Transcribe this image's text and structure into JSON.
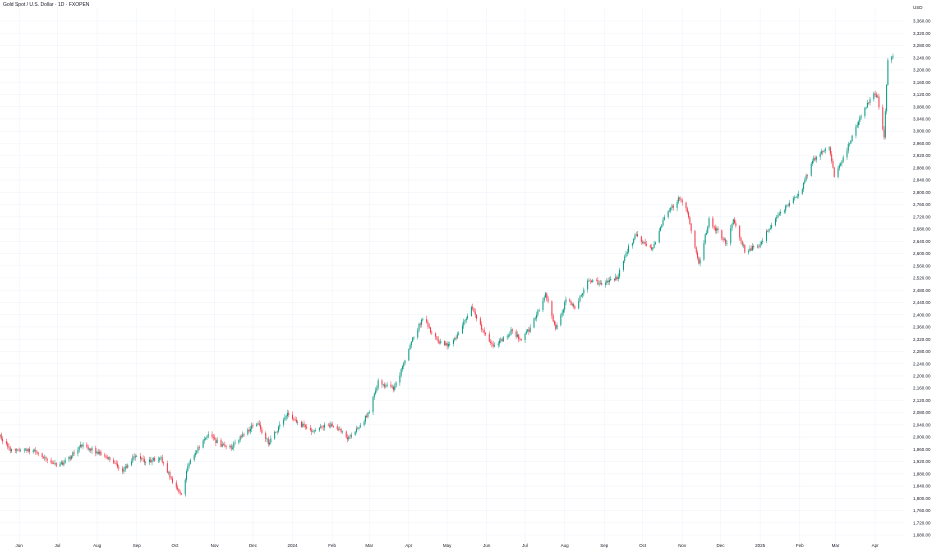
{
  "header": {
    "symbol_title": "Gold Spot / U.S. Dollar · 1D · FXOPEN"
  },
  "colors": {
    "up": "#089981",
    "down": "#f23645",
    "grid": "#f0f3fa",
    "text": "#131722"
  },
  "chart_data": {
    "type": "candlestick",
    "currency_label": "USD",
    "y_axis": {
      "ticks": [
        1680,
        1720,
        1760,
        1800,
        1840,
        1880,
        1920,
        1960,
        2000,
        2040,
        2080,
        2120,
        2160,
        2200,
        2240,
        2280,
        2320,
        2360,
        2400,
        2440,
        2480,
        2520,
        2560,
        2600,
        2640,
        2680,
        2720,
        2760,
        2800,
        2840,
        2880,
        2920,
        2960,
        3000,
        3040,
        3080,
        3120,
        3160,
        3200,
        3240,
        3280,
        3320,
        3360
      ],
      "tick_labels": [
        "1,680.00",
        "1,720.00",
        "1,760.00",
        "1,800.00",
        "1,840.00",
        "1,880.00",
        "1,920.00",
        "1,960.00",
        "2,000.00",
        "2,040.00",
        "2,080.00",
        "2,120.00",
        "2,160.00",
        "2,200.00",
        "2,240.00",
        "2,280.00",
        "2,320.00",
        "2,360.00",
        "2,400.00",
        "2,440.00",
        "2,480.00",
        "2,520.00",
        "2,560.00",
        "2,600.00",
        "2,640.00",
        "2,680.00",
        "2,720.00",
        "2,760.00",
        "2,800.00",
        "2,840.00",
        "2,880.00",
        "2,920.00",
        "2,960.00",
        "3,000.00",
        "3,040.00",
        "3,080.00",
        "3,120.00",
        "3,160.00",
        "3,200.00",
        "3,240.00",
        "3,280.00",
        "3,320.00",
        "3,360.00"
      ],
      "range": [
        1680,
        3360
      ]
    },
    "x_axis": {
      "labels": [
        "Jun",
        "Jul",
        "Aug",
        "Sep",
        "Oct",
        "Nov",
        "Dec",
        "2024",
        "Feb",
        "Mar",
        "Apr",
        "May",
        "Jun",
        "Jul",
        "Aug",
        "Sep",
        "Oct",
        "Nov",
        "Dec",
        "2025",
        "Feb",
        "Mar",
        "Apr"
      ],
      "range": [
        "2023-05-17",
        "2025-04-15"
      ]
    },
    "close_path": [
      [
        "2023-05-17",
        2005
      ],
      [
        "2023-05-25",
        1955
      ],
      [
        "2023-06-02",
        1960
      ],
      [
        "2023-06-12",
        1955
      ],
      [
        "2023-06-22",
        1930
      ],
      [
        "2023-06-29",
        1910
      ],
      [
        "2023-07-06",
        1915
      ],
      [
        "2023-07-20",
        1975
      ],
      [
        "2023-07-28",
        1960
      ],
      [
        "2023-08-08",
        1935
      ],
      [
        "2023-08-21",
        1890
      ],
      [
        "2023-08-31",
        1940
      ],
      [
        "2023-09-08",
        1920
      ],
      [
        "2023-09-20",
        1930
      ],
      [
        "2023-10-02",
        1830
      ],
      [
        "2023-10-06",
        1818
      ],
      [
        "2023-10-13",
        1930
      ],
      [
        "2023-10-27",
        2005
      ],
      [
        "2023-11-06",
        1975
      ],
      [
        "2023-11-14",
        1965
      ],
      [
        "2023-11-22",
        2000
      ],
      [
        "2023-12-04",
        2050
      ],
      [
        "2023-12-13",
        1980
      ],
      [
        "2023-12-28",
        2075
      ],
      [
        "2024-01-05",
        2045
      ],
      [
        "2024-01-17",
        2020
      ],
      [
        "2024-01-29",
        2040
      ],
      [
        "2024-02-06",
        2030
      ],
      [
        "2024-02-14",
        1995
      ],
      [
        "2024-02-23",
        2035
      ],
      [
        "2024-03-01",
        2085
      ],
      [
        "2024-03-08",
        2180
      ],
      [
        "2024-03-20",
        2160
      ],
      [
        "2024-03-28",
        2235
      ],
      [
        "2024-04-05",
        2330
      ],
      [
        "2024-04-12",
        2390
      ],
      [
        "2024-04-23",
        2315
      ],
      [
        "2024-05-02",
        2300
      ],
      [
        "2024-05-10",
        2340
      ],
      [
        "2024-05-20",
        2425
      ],
      [
        "2024-05-31",
        2330
      ],
      [
        "2024-06-07",
        2295
      ],
      [
        "2024-06-20",
        2345
      ],
      [
        "2024-06-28",
        2320
      ],
      [
        "2024-07-05",
        2355
      ],
      [
        "2024-07-17",
        2470
      ],
      [
        "2024-07-25",
        2355
      ],
      [
        "2024-08-02",
        2445
      ],
      [
        "2024-08-09",
        2425
      ],
      [
        "2024-08-20",
        2515
      ],
      [
        "2024-08-30",
        2500
      ],
      [
        "2024-09-11",
        2520
      ],
      [
        "2024-09-20",
        2620
      ],
      [
        "2024-09-26",
        2660
      ],
      [
        "2024-10-08",
        2610
      ],
      [
        "2024-10-18",
        2715
      ],
      [
        "2024-10-30",
        2785
      ],
      [
        "2024-11-05",
        2735
      ],
      [
        "2024-11-14",
        2565
      ],
      [
        "2024-11-22",
        2710
      ],
      [
        "2024-12-06",
        2630
      ],
      [
        "2024-12-11",
        2715
      ],
      [
        "2024-12-20",
        2610
      ],
      [
        "2024-12-31",
        2625
      ],
      [
        "2025-01-10",
        2695
      ],
      [
        "2025-01-22",
        2755
      ],
      [
        "2025-02-03",
        2815
      ],
      [
        "2025-02-11",
        2905
      ],
      [
        "2025-02-24",
        2950
      ],
      [
        "2025-02-28",
        2855
      ],
      [
        "2025-03-07",
        2910
      ],
      [
        "2025-03-14",
        2985
      ],
      [
        "2025-03-20",
        3040
      ],
      [
        "2025-03-31",
        3125
      ],
      [
        "2025-04-03",
        3110
      ],
      [
        "2025-04-08",
        2985
      ],
      [
        "2025-04-11",
        3235
      ],
      [
        "2025-04-15",
        3245
      ]
    ]
  }
}
